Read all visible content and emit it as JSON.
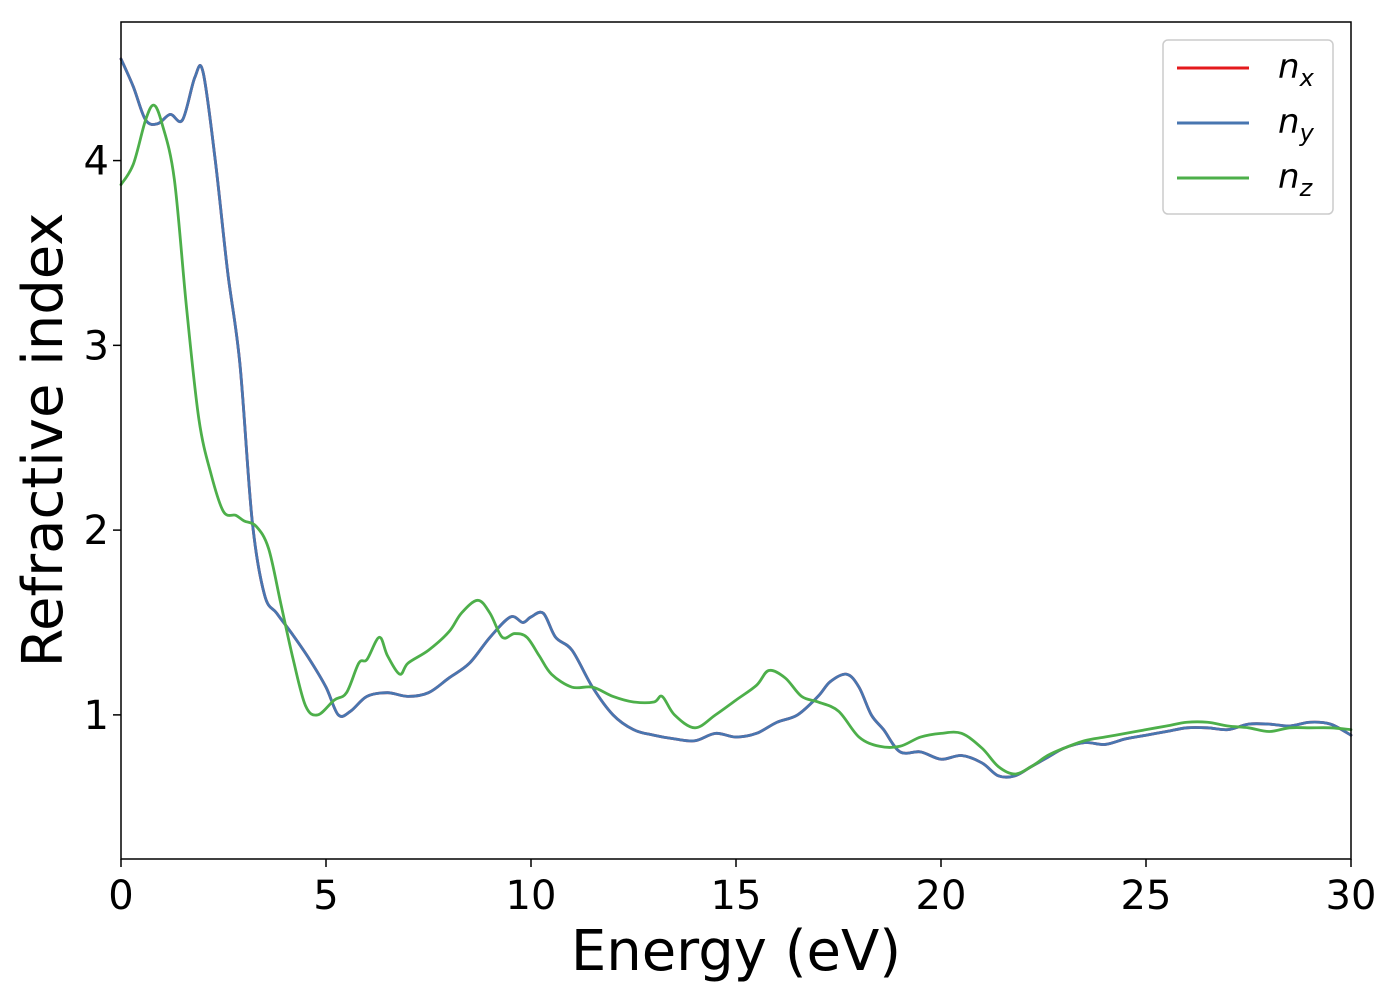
{
  "chart_data": {
    "type": "line",
    "title": "",
    "xlabel": "Energy (eV)",
    "ylabel": "Refractive index",
    "xlim": [
      0,
      30
    ],
    "ylim": [
      0.22,
      4.75
    ],
    "xticks": [
      0,
      5,
      10,
      15,
      20,
      25,
      30
    ],
    "yticks": [
      1,
      2,
      3,
      4
    ],
    "grid": false,
    "legend_position": "top-right",
    "series": [
      {
        "name": "n_x",
        "legend_main": "n",
        "legend_sub": "x",
        "color": "#e41a1c",
        "x": [
          0,
          0.3,
          0.6,
          0.9,
          1.2,
          1.5,
          1.8,
          2.0,
          2.3,
          2.6,
          2.9,
          3.2,
          3.5,
          3.8,
          4.2,
          4.6,
          5.0,
          5.3,
          5.6,
          6.0,
          6.5,
          7.0,
          7.5,
          8.0,
          8.5,
          9.0,
          9.5,
          9.8,
          10.0,
          10.3,
          10.6,
          11.0,
          11.5,
          12.0,
          12.5,
          13.0,
          13.5,
          14.0,
          14.5,
          15.0,
          15.5,
          16.0,
          16.5,
          17.0,
          17.3,
          17.7,
          18.0,
          18.3,
          18.6,
          19.0,
          19.5,
          20.0,
          20.5,
          21.0,
          21.4,
          21.8,
          22.2,
          22.6,
          23.0,
          23.5,
          24.0,
          24.5,
          25.0,
          25.5,
          26.0,
          26.5,
          27.0,
          27.5,
          28.0,
          28.5,
          29.0,
          29.5,
          30.0
        ],
        "y": [
          4.55,
          4.4,
          4.22,
          4.2,
          4.25,
          4.22,
          4.45,
          4.48,
          4.0,
          3.4,
          2.9,
          2.05,
          1.65,
          1.55,
          1.43,
          1.3,
          1.15,
          1.0,
          1.02,
          1.1,
          1.12,
          1.1,
          1.12,
          1.2,
          1.28,
          1.42,
          1.53,
          1.5,
          1.53,
          1.55,
          1.42,
          1.35,
          1.15,
          1.0,
          0.92,
          0.89,
          0.87,
          0.86,
          0.9,
          0.88,
          0.9,
          0.96,
          1.0,
          1.1,
          1.18,
          1.22,
          1.15,
          1.0,
          0.92,
          0.8,
          0.8,
          0.76,
          0.78,
          0.74,
          0.67,
          0.67,
          0.72,
          0.77,
          0.82,
          0.85,
          0.84,
          0.87,
          0.89,
          0.91,
          0.93,
          0.93,
          0.92,
          0.95,
          0.95,
          0.94,
          0.96,
          0.95,
          0.89
        ]
      },
      {
        "name": "n_y",
        "legend_main": "n",
        "legend_sub": "y",
        "color": "#4876b0",
        "x": [
          0,
          0.3,
          0.6,
          0.9,
          1.2,
          1.5,
          1.8,
          2.0,
          2.3,
          2.6,
          2.9,
          3.2,
          3.5,
          3.8,
          4.2,
          4.6,
          5.0,
          5.3,
          5.6,
          6.0,
          6.5,
          7.0,
          7.5,
          8.0,
          8.5,
          9.0,
          9.5,
          9.8,
          10.0,
          10.3,
          10.6,
          11.0,
          11.5,
          12.0,
          12.5,
          13.0,
          13.5,
          14.0,
          14.5,
          15.0,
          15.5,
          16.0,
          16.5,
          17.0,
          17.3,
          17.7,
          18.0,
          18.3,
          18.6,
          19.0,
          19.5,
          20.0,
          20.5,
          21.0,
          21.4,
          21.8,
          22.2,
          22.6,
          23.0,
          23.5,
          24.0,
          24.5,
          25.0,
          25.5,
          26.0,
          26.5,
          27.0,
          27.5,
          28.0,
          28.5,
          29.0,
          29.5,
          30.0
        ],
        "y": [
          4.55,
          4.4,
          4.22,
          4.2,
          4.25,
          4.22,
          4.45,
          4.48,
          4.0,
          3.4,
          2.9,
          2.05,
          1.65,
          1.55,
          1.43,
          1.3,
          1.15,
          1.0,
          1.02,
          1.1,
          1.12,
          1.1,
          1.12,
          1.2,
          1.28,
          1.42,
          1.53,
          1.5,
          1.53,
          1.55,
          1.42,
          1.35,
          1.15,
          1.0,
          0.92,
          0.89,
          0.87,
          0.86,
          0.9,
          0.88,
          0.9,
          0.96,
          1.0,
          1.1,
          1.18,
          1.22,
          1.15,
          1.0,
          0.92,
          0.8,
          0.8,
          0.76,
          0.78,
          0.74,
          0.67,
          0.67,
          0.72,
          0.77,
          0.82,
          0.85,
          0.84,
          0.87,
          0.89,
          0.91,
          0.93,
          0.93,
          0.92,
          0.95,
          0.95,
          0.94,
          0.96,
          0.95,
          0.89
        ]
      },
      {
        "name": "n_z",
        "legend_main": "n",
        "legend_sub": "z",
        "color": "#4daf4a",
        "x": [
          0,
          0.3,
          0.6,
          0.8,
          1.0,
          1.3,
          1.6,
          1.9,
          2.2,
          2.5,
          2.8,
          3.0,
          3.3,
          3.6,
          3.9,
          4.2,
          4.5,
          4.8,
          5.2,
          5.5,
          5.8,
          6.0,
          6.3,
          6.5,
          6.8,
          7.0,
          7.5,
          8.0,
          8.3,
          8.7,
          9.0,
          9.3,
          9.6,
          9.9,
          10.2,
          10.5,
          11.0,
          11.5,
          12.0,
          12.5,
          13.0,
          13.2,
          13.5,
          14.0,
          14.5,
          15.0,
          15.5,
          15.8,
          16.2,
          16.6,
          17.0,
          17.5,
          18.0,
          18.5,
          19.0,
          19.5,
          20.0,
          20.5,
          21.0,
          21.4,
          21.8,
          22.2,
          22.6,
          23.0,
          23.5,
          24.0,
          24.5,
          25.0,
          25.5,
          26.0,
          26.5,
          27.0,
          27.5,
          28.0,
          28.5,
          29.0,
          29.5,
          30.0
        ],
        "y": [
          3.87,
          3.98,
          4.22,
          4.3,
          4.2,
          3.9,
          3.2,
          2.6,
          2.3,
          2.1,
          2.08,
          2.05,
          2.02,
          1.9,
          1.6,
          1.3,
          1.05,
          1.0,
          1.08,
          1.12,
          1.28,
          1.3,
          1.42,
          1.32,
          1.22,
          1.28,
          1.35,
          1.45,
          1.55,
          1.62,
          1.55,
          1.42,
          1.44,
          1.42,
          1.32,
          1.22,
          1.15,
          1.15,
          1.1,
          1.07,
          1.07,
          1.1,
          1.0,
          0.93,
          1.0,
          1.08,
          1.16,
          1.24,
          1.2,
          1.1,
          1.07,
          1.02,
          0.88,
          0.83,
          0.83,
          0.88,
          0.9,
          0.9,
          0.82,
          0.72,
          0.68,
          0.72,
          0.78,
          0.82,
          0.86,
          0.88,
          0.9,
          0.92,
          0.94,
          0.96,
          0.96,
          0.94,
          0.93,
          0.91,
          0.93,
          0.93,
          0.93,
          0.92
        ]
      }
    ]
  }
}
